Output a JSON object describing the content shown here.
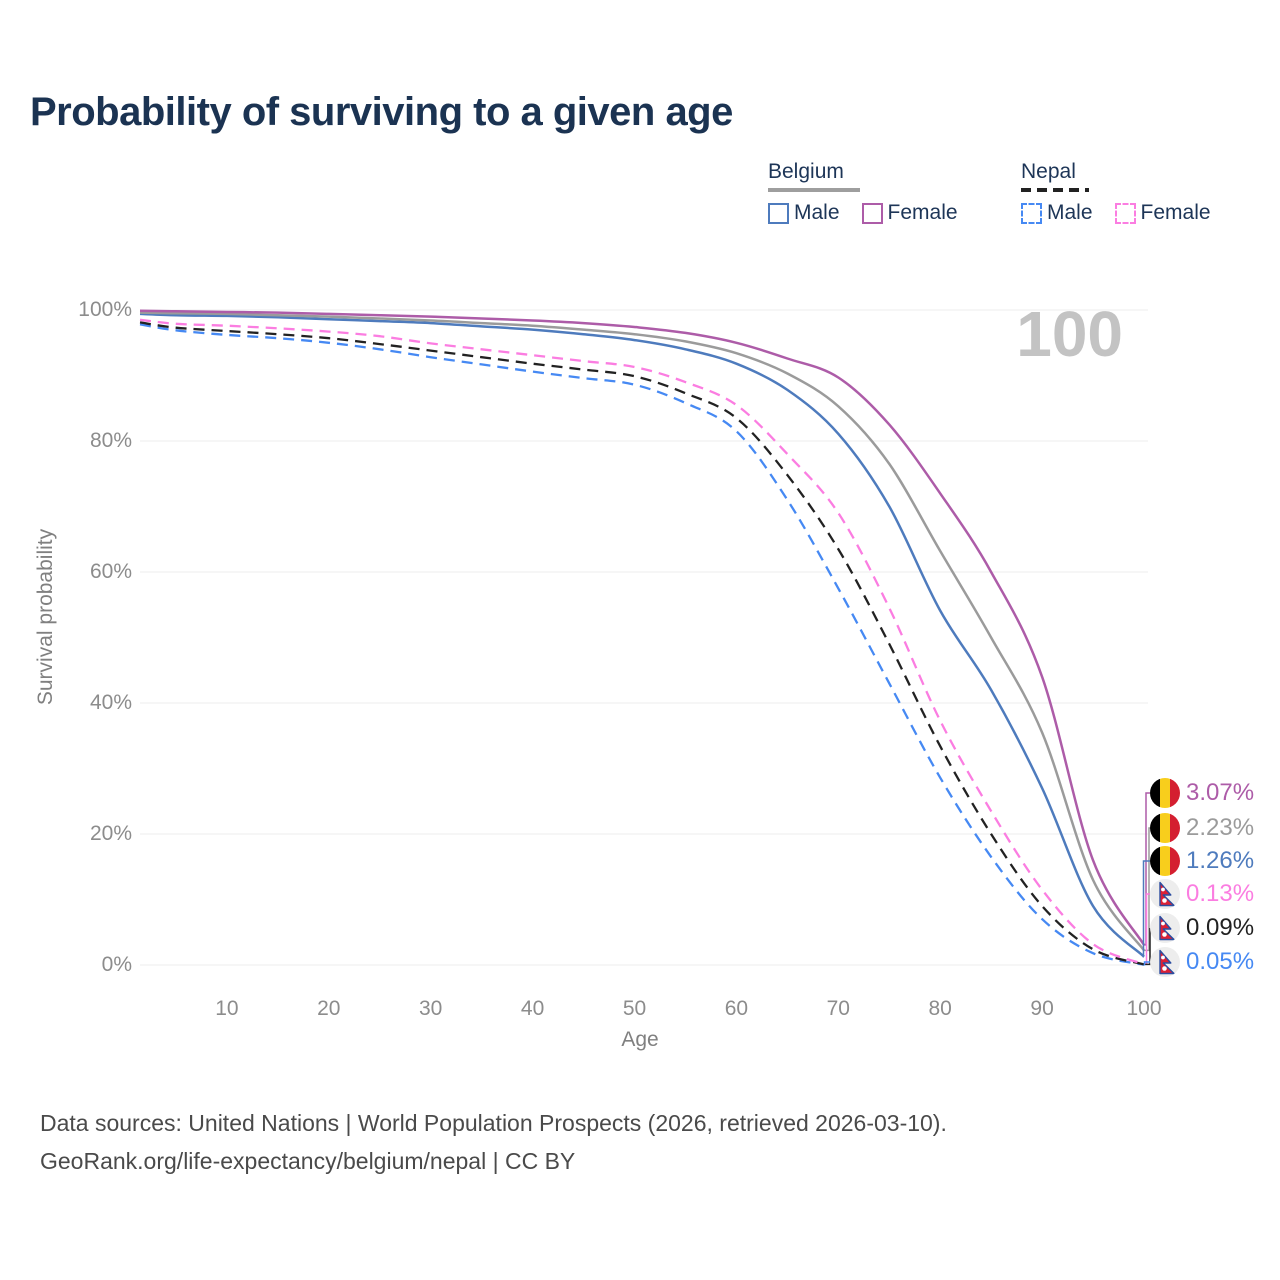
{
  "header": {
    "title": "Probability of surviving to a given age"
  },
  "watermark": "100",
  "legend": {
    "belgium": {
      "label": "Belgium",
      "style": "solid",
      "rule_color": "#9e9e9e",
      "male_label": "Male",
      "male_color": "#4e7bbd",
      "female_label": "Female",
      "female_color": "#ad5ca8"
    },
    "nepal": {
      "label": "Nepal",
      "style": "dashed",
      "rule_color": "#222222",
      "male_label": "Male",
      "male_color": "#4689f3",
      "female_label": "Female",
      "female_color": "#fb7de1"
    }
  },
  "axes": {
    "y_title": "Survival probability",
    "x_title": "Age",
    "y_ticks": [
      "100%",
      "80%",
      "60%",
      "40%",
      "20%",
      "0%"
    ],
    "y_tick_values": [
      100,
      80,
      60,
      40,
      20,
      0
    ],
    "x_ticks": [
      "10",
      "20",
      "30",
      "40",
      "50",
      "60",
      "70",
      "80",
      "90",
      "100"
    ],
    "x_tick_values": [
      10,
      20,
      30,
      40,
      50,
      60,
      70,
      80,
      90,
      100
    ]
  },
  "chart_data": {
    "type": "line",
    "title": "Probability of surviving to a given age",
    "xlabel": "Age",
    "ylabel": "Survival probability",
    "x_range": [
      1,
      100
    ],
    "y_range": [
      0,
      100
    ],
    "grid": "horizontal-only",
    "x": [
      1,
      5,
      10,
      15,
      20,
      25,
      30,
      35,
      40,
      45,
      50,
      55,
      60,
      65,
      70,
      75,
      80,
      85,
      90,
      95,
      100
    ],
    "series": [
      {
        "name": "Nepal Male",
        "country": "Nepal",
        "sex": "Male",
        "color": "#4689f3",
        "dash": true,
        "end_label": "0.05%",
        "values": [
          97.8,
          96.9,
          96.2,
          95.7,
          95.0,
          94.0,
          92.8,
          91.7,
          90.6,
          89.6,
          88.6,
          85.8,
          81.5,
          71.0,
          57.5,
          43.0,
          28.6,
          16.5,
          7.0,
          1.8,
          0.05
        ]
      },
      {
        "name": "Nepal",
        "country": "Nepal",
        "sex": "Both",
        "color": "#222222",
        "dash": true,
        "end_label": "0.09%",
        "values": [
          98.1,
          97.3,
          96.8,
          96.3,
          95.7,
          94.8,
          93.8,
          92.8,
          91.8,
          90.9,
          89.9,
          87.3,
          83.5,
          74.8,
          63.5,
          49.0,
          33.4,
          20.0,
          9.0,
          2.4,
          0.09
        ]
      },
      {
        "name": "Nepal Female",
        "country": "Nepal",
        "sex": "Female",
        "color": "#fb7de1",
        "dash": true,
        "end_label": "0.13%",
        "values": [
          98.5,
          97.9,
          97.6,
          97.2,
          96.7,
          96.0,
          94.9,
          94.0,
          93.1,
          92.2,
          91.3,
          89.0,
          85.5,
          78.0,
          69.0,
          54.5,
          37.3,
          23.5,
          11.5,
          3.2,
          0.13
        ]
      },
      {
        "name": "Belgium Male",
        "country": "Belgium",
        "sex": "Male",
        "color": "#4e7bbd",
        "dash": false,
        "end_label": "1.26%",
        "values": [
          99.4,
          99.2,
          99.1,
          98.9,
          98.6,
          98.3,
          98.0,
          97.5,
          97.0,
          96.3,
          95.4,
          94.0,
          91.8,
          87.8,
          81.1,
          70.0,
          54.1,
          42.0,
          27.0,
          9.0,
          1.26
        ]
      },
      {
        "name": "Belgium",
        "country": "Belgium",
        "sex": "Both",
        "color": "#9b9b9b",
        "dash": false,
        "end_label": "2.23%",
        "values": [
          99.6,
          99.5,
          99.4,
          99.2,
          99.0,
          98.7,
          98.4,
          98.0,
          97.6,
          97.0,
          96.3,
          95.2,
          93.4,
          90.3,
          85.3,
          76.5,
          63.2,
          50.0,
          35.5,
          13.0,
          2.23
        ]
      },
      {
        "name": "Belgium Female",
        "country": "Belgium",
        "sex": "Female",
        "color": "#ad5ca8",
        "dash": false,
        "end_label": "3.07%",
        "values": [
          99.9,
          99.8,
          99.7,
          99.6,
          99.4,
          99.2,
          99.0,
          98.7,
          98.4,
          98.0,
          97.4,
          96.5,
          95.0,
          92.6,
          89.7,
          82.5,
          72.0,
          60.0,
          44.0,
          16.0,
          3.07
        ]
      }
    ]
  },
  "end_labels": [
    {
      "value": "3.07%",
      "color": "#ad5ca8",
      "flag": "belgium",
      "series": "Belgium Female"
    },
    {
      "value": "2.23%",
      "color": "#9b9b9b",
      "flag": "belgium",
      "series": "Belgium"
    },
    {
      "value": "1.26%",
      "color": "#4e7bbd",
      "flag": "belgium",
      "series": "Belgium Male"
    },
    {
      "value": "0.13%",
      "color": "#fb7de1",
      "flag": "nepal",
      "series": "Nepal Female"
    },
    {
      "value": "0.09%",
      "color": "#222222",
      "flag": "nepal",
      "series": "Nepal"
    },
    {
      "value": "0.05%",
      "color": "#4689f3",
      "flag": "nepal",
      "series": "Nepal Male"
    }
  ],
  "caption": {
    "line1": "Data sources: United Nations | World Population Prospects (2026, retrieved 2026-03-10).",
    "line2": "GeoRank.org/life-expectancy/belgium/nepal | CC BY"
  }
}
